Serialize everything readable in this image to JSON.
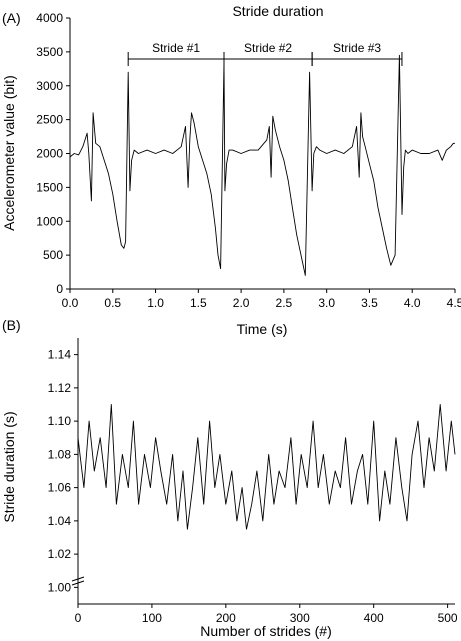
{
  "panels": [
    "(A)",
    "(B)"
  ],
  "chart_data": [
    {
      "type": "line",
      "panel": "(A)",
      "title": "Stride duration",
      "xlabel": "Time (s)",
      "ylabel": "Accelerometer value (bit)",
      "xlim": [
        0,
        4.5
      ],
      "ylim": [
        0,
        4000
      ],
      "xticks": [
        "0.0",
        "0.5",
        "1.0",
        "1.5",
        "2.0",
        "2.5",
        "3.0",
        "3.5",
        "4.0",
        "4.5"
      ],
      "yticks": [
        "0",
        "500",
        "1000",
        "1500",
        "2000",
        "2500",
        "3000",
        "3500",
        "4000"
      ],
      "strides": [
        {
          "label": "Stride #1",
          "start": 0.68,
          "end": 1.8
        },
        {
          "label": "Stride #2",
          "start": 1.8,
          "end": 2.83
        },
        {
          "label": "Stride #3",
          "start": 2.83,
          "end": 3.88
        }
      ],
      "series": [
        {
          "x": [
            0.0,
            0.05,
            0.1,
            0.15,
            0.2,
            0.22,
            0.25,
            0.27,
            0.3,
            0.35,
            0.4,
            0.45,
            0.5,
            0.55,
            0.6,
            0.63,
            0.65,
            0.68,
            0.7,
            0.72,
            0.75,
            0.8,
            0.9,
            1.0,
            1.1,
            1.2,
            1.3,
            1.35,
            1.38,
            1.4,
            1.42,
            1.45,
            1.5,
            1.55,
            1.6,
            1.65,
            1.7,
            1.73,
            1.76,
            1.8,
            1.81,
            1.83,
            1.86,
            1.9,
            2.0,
            2.1,
            2.2,
            2.3,
            2.33,
            2.35,
            2.37,
            2.4,
            2.45,
            2.5,
            2.55,
            2.6,
            2.65,
            2.7,
            2.75,
            2.8,
            2.83,
            2.85,
            2.88,
            2.92,
            3.0,
            3.1,
            3.2,
            3.3,
            3.35,
            3.38,
            3.4,
            3.42,
            3.45,
            3.5,
            3.55,
            3.6,
            3.65,
            3.7,
            3.75,
            3.8,
            3.85,
            3.88,
            3.9,
            3.92,
            3.95,
            4.0,
            4.1,
            4.2,
            4.3,
            4.35,
            4.4,
            4.45,
            4.48,
            4.5
          ],
          "y": [
            1950,
            2000,
            1980,
            2100,
            2300,
            2000,
            1300,
            2600,
            2150,
            2100,
            1900,
            1700,
            1400,
            1000,
            650,
            600,
            700,
            3200,
            1450,
            1900,
            2050,
            2000,
            2050,
            2000,
            2050,
            2000,
            2100,
            2400,
            1500,
            2200,
            2600,
            2450,
            2100,
            1900,
            1700,
            1400,
            900,
            500,
            300,
            3350,
            1450,
            1850,
            2050,
            2050,
            2000,
            2050,
            2050,
            2200,
            2400,
            1650,
            2550,
            2350,
            2100,
            1900,
            1600,
            1200,
            800,
            500,
            200,
            3200,
            1450,
            2000,
            2100,
            2050,
            2000,
            2050,
            2000,
            2100,
            2400,
            1650,
            2600,
            2250,
            2100,
            1850,
            1600,
            1200,
            900,
            600,
            350,
            500,
            3450,
            1100,
            1800,
            2050,
            2000,
            2050,
            2000,
            2000,
            2050,
            1900,
            2050,
            2100,
            2150,
            2150
          ]
        }
      ]
    },
    {
      "type": "line",
      "panel": "(B)",
      "xlabel": "Number of strides (#)",
      "ylabel": "Stride duration (s)",
      "xlim": [
        0,
        510
      ],
      "ylim": [
        0.99,
        1.15
      ],
      "xticks": [
        "0",
        "100",
        "200",
        "300",
        "400",
        "500"
      ],
      "yticks": [
        "1.00",
        "1.02",
        "1.04",
        "1.06",
        "1.08",
        "1.10",
        "1.12",
        "1.14"
      ],
      "series": [
        {
          "x": [
            0,
            8,
            15,
            22,
            30,
            38,
            45,
            52,
            60,
            68,
            75,
            82,
            90,
            98,
            105,
            112,
            120,
            128,
            135,
            142,
            148,
            155,
            162,
            170,
            178,
            185,
            192,
            200,
            208,
            215,
            222,
            228,
            235,
            242,
            250,
            258,
            265,
            272,
            280,
            288,
            295,
            302,
            310,
            318,
            325,
            332,
            340,
            348,
            355,
            362,
            370,
            378,
            385,
            392,
            400,
            408,
            415,
            422,
            430,
            438,
            445,
            452,
            460,
            468,
            475,
            482,
            490,
            498,
            505,
            510
          ],
          "y": [
            1.09,
            1.06,
            1.1,
            1.07,
            1.09,
            1.06,
            1.11,
            1.05,
            1.08,
            1.06,
            1.1,
            1.05,
            1.08,
            1.06,
            1.09,
            1.07,
            1.05,
            1.08,
            1.04,
            1.07,
            1.035,
            1.06,
            1.09,
            1.05,
            1.1,
            1.06,
            1.08,
            1.05,
            1.07,
            1.04,
            1.06,
            1.035,
            1.05,
            1.07,
            1.04,
            1.08,
            1.05,
            1.07,
            1.06,
            1.09,
            1.05,
            1.08,
            1.06,
            1.1,
            1.06,
            1.08,
            1.05,
            1.07,
            1.06,
            1.09,
            1.05,
            1.07,
            1.08,
            1.05,
            1.1,
            1.04,
            1.07,
            1.05,
            1.09,
            1.06,
            1.04,
            1.08,
            1.1,
            1.06,
            1.09,
            1.07,
            1.11,
            1.07,
            1.1,
            1.08
          ]
        }
      ]
    }
  ]
}
